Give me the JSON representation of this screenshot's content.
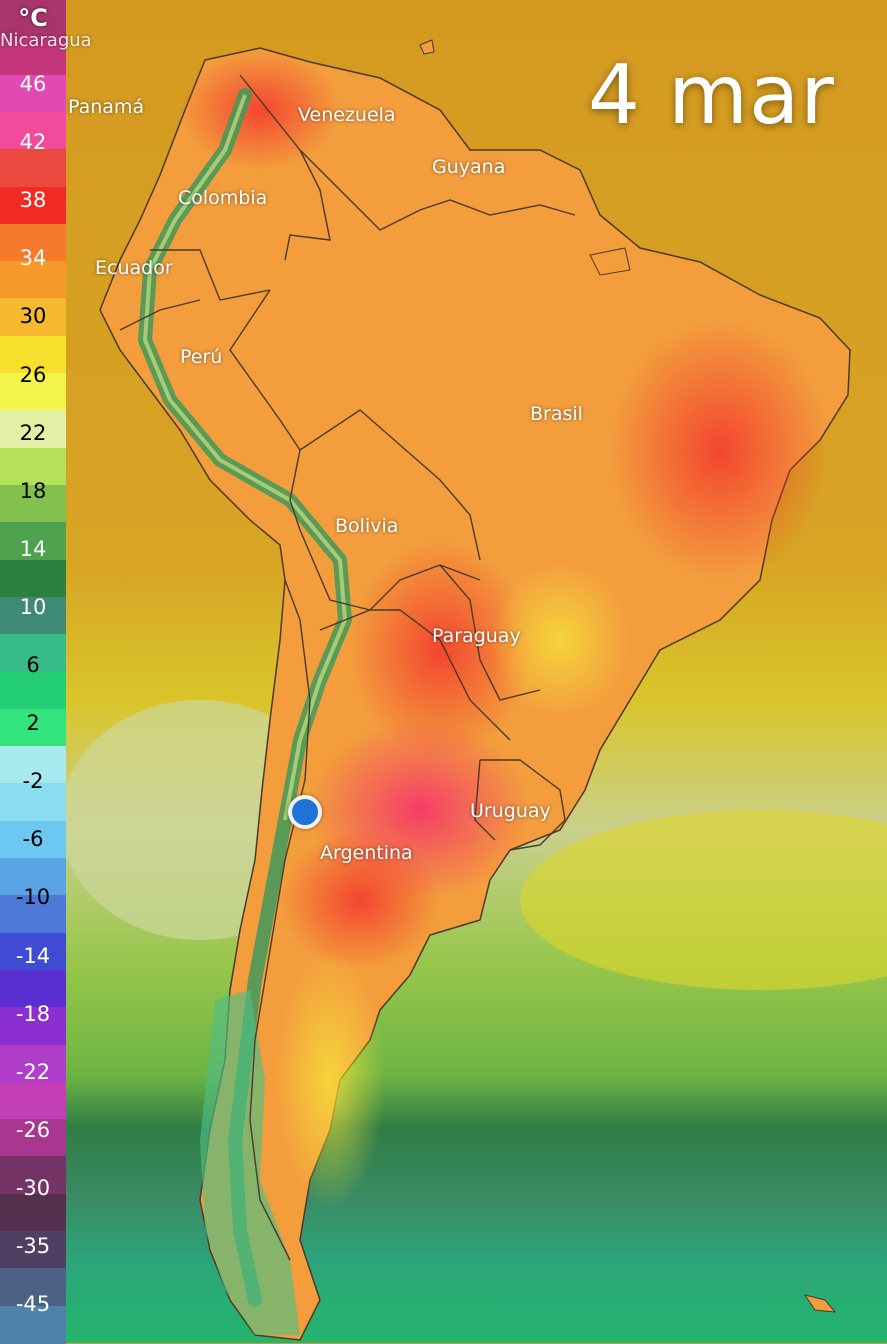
{
  "date_label": "4 mar",
  "legend": {
    "unit": "°C",
    "ticks": [
      "46",
      "42",
      "38",
      "34",
      "30",
      "26",
      "22",
      "18",
      "14",
      "10",
      "6",
      "2",
      "-2",
      "-6",
      "-10",
      "-14",
      "-18",
      "-22",
      "-26",
      "-30",
      "-35",
      "-45"
    ],
    "colors": [
      "#a8356e",
      "#c4357c",
      "#e14ab3",
      "#f24a9c",
      "#e9493e",
      "#f12a23",
      "#f57a2c",
      "#f59a2a",
      "#f7b92e",
      "#f7e02b",
      "#f4f54a",
      "#e2f0a6",
      "#b5e05a",
      "#82c14e",
      "#4ea24c",
      "#2b7f3f",
      "#3f8a74",
      "#36bb89",
      "#23cd76",
      "#31e47e",
      "#a8e9ef",
      "#8adcf1",
      "#6cc8f0",
      "#5aa4e3",
      "#4e78d8",
      "#3f4bd2",
      "#5a2fcf",
      "#8b2fd1",
      "#b03ec9",
      "#c43fb7",
      "#a8378f",
      "#743566",
      "#55304e",
      "#4f3f63",
      "#4b6185",
      "#4e82a8"
    ],
    "text_colors": [
      "#ffffff",
      "#ffffff",
      "#ffffff",
      "#ffffff",
      "#000000",
      "#000000",
      "#000000",
      "#000000",
      "#ffffff",
      "#ffffff",
      "#000000",
      "#000000",
      "#000000",
      "#000000",
      "#000000",
      "#ffffff",
      "#ffffff",
      "#ffffff",
      "#ffffff",
      "#ffffff",
      "#ffffff",
      "#ffffff"
    ]
  },
  "countries": [
    {
      "name": "Nicaragua"
    },
    {
      "name": "Panamá"
    },
    {
      "name": "Venezuela"
    },
    {
      "name": "Guyana"
    },
    {
      "name": "Colombia"
    },
    {
      "name": "Ecuador"
    },
    {
      "name": "Perú"
    },
    {
      "name": "Brasil"
    },
    {
      "name": "Bolivia"
    },
    {
      "name": "Paraguay"
    },
    {
      "name": "Uruguay"
    },
    {
      "name": "Argentina"
    }
  ],
  "colors": {
    "ocean_warm": "#d99a22",
    "ocean_yellow": "#dccf2a",
    "ocean_pale": "#c8d394",
    "ocean_green": "#8fc344",
    "ocean_dark": "#2f8a4a",
    "ocean_teal": "#2fa77a",
    "land_orange": "#f39a3a",
    "land_red": "#f2523a",
    "land_pink": "#f04e8e",
    "andes_green": "#3f9a5a",
    "location_pin": "#1f73d8"
  }
}
